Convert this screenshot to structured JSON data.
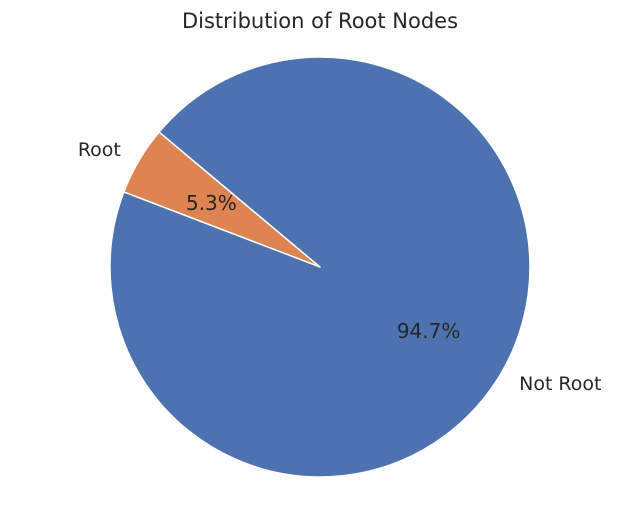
{
  "chart_data": {
    "type": "pie",
    "title": "Distribution of Root Nodes",
    "slices": [
      {
        "label": "Root",
        "value": 5.3,
        "percent_label": "5.3%",
        "color": "#dd8452"
      },
      {
        "label": "Not Root",
        "value": 94.7,
        "percent_label": "94.7%",
        "color": "#4c72b0"
      }
    ],
    "start_angle_deg": 140,
    "edge_color": "#ffffff"
  }
}
